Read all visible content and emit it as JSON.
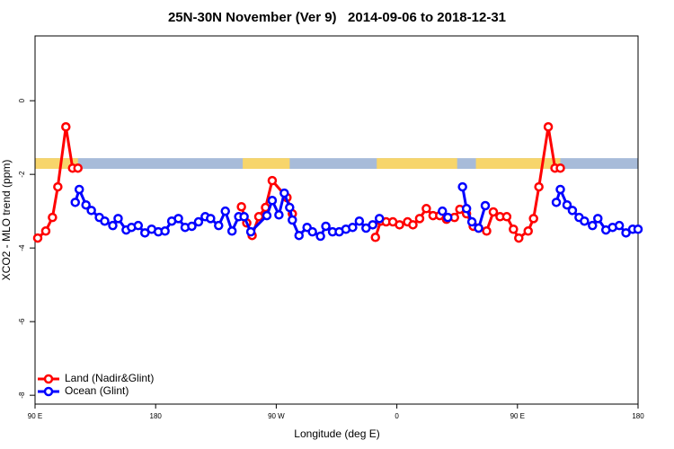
{
  "chart_data": {
    "type": "line",
    "title": "25N-30N November (Ver 9)   2014-09-06 to 2018-12-31",
    "x_label": "Longitude (deg E)",
    "y_label": "XCO2 - MLO trend (ppm)",
    "xlim": [
      90,
      540
    ],
    "xticks": [
      {
        "value": 90,
        "label": "90 E"
      },
      180,
      {
        "value": 270,
        "label": "90 W"
      },
      {
        "value": 360,
        "label": "0"
      },
      {
        "value": 450,
        "label": "90 E"
      },
      {
        "value": 540,
        "label": "180"
      }
    ],
    "ylim": [
      -8.24,
      1.76
    ],
    "yticks": [
      0,
      -2,
      -4,
      -6,
      -8
    ],
    "legend": "bottom-left",
    "land_mask": {
      "y": [
        -1.56,
        -1.85
      ],
      "land_color": "#f7d56b",
      "ocean_color": "#a7bbd9",
      "land_x": [
        [
          90,
          122
        ],
        [
          245,
          280
        ],
        [
          345,
          405
        ],
        [
          419,
          482
        ]
      ]
    },
    "series": [
      {
        "name": "Land (Nadir&Glint)",
        "color": "#ff0000",
        "x": [
          92,
          98,
          103,
          107,
          113,
          118,
          122,
          null,
          244,
          248,
          252,
          257,
          262,
          267,
          278,
          282,
          null,
          344,
          348,
          352,
          357,
          362,
          368,
          372,
          377,
          382,
          387,
          392,
          397,
          403,
          407,
          412,
          417,
          421,
          427,
          432,
          437,
          442,
          447,
          451,
          458,
          462,
          466,
          473,
          478,
          482
        ],
        "values": [
          -3.73,
          -3.54,
          -3.17,
          -2.34,
          -0.71,
          -1.83,
          -1.83,
          null,
          -2.88,
          -3.32,
          -3.66,
          -3.15,
          -2.9,
          -2.17,
          -2.63,
          -3.07,
          null,
          -3.71,
          -3.27,
          -3.29,
          -3.29,
          -3.37,
          -3.29,
          -3.37,
          -3.2,
          -2.93,
          -3.12,
          -3.12,
          -3.22,
          -3.17,
          -2.95,
          -3.07,
          -3.41,
          -3.46,
          -3.54,
          -3.02,
          -3.15,
          -3.15,
          -3.49,
          -3.73,
          -3.54,
          -3.2,
          -2.34,
          -0.71,
          -1.83,
          -1.83
        ]
      },
      {
        "name": "Ocean (Glint)",
        "color": "#0000ff",
        "x": [
          120,
          123,
          128,
          132,
          138,
          142,
          148,
          152,
          158,
          162,
          167,
          172,
          177,
          182,
          187,
          192,
          197,
          202,
          207,
          212,
          217,
          221,
          227,
          232,
          237,
          242,
          246,
          251,
          263,
          267,
          272,
          276,
          280,
          282,
          287,
          293,
          297,
          303,
          307,
          312,
          317,
          322,
          327,
          332,
          337,
          342,
          347,
          null,
          394,
          398,
          null,
          409,
          412,
          416,
          421,
          426,
          null,
          479,
          482,
          487,
          491,
          496,
          500,
          506,
          510,
          516,
          521,
          526,
          531,
          536,
          540
        ],
        "values": [
          -2.76,
          -2.41,
          -2.83,
          -2.98,
          -3.17,
          -3.27,
          -3.39,
          -3.2,
          -3.51,
          -3.44,
          -3.39,
          -3.59,
          -3.49,
          -3.56,
          -3.54,
          -3.27,
          -3.2,
          -3.44,
          -3.41,
          -3.29,
          -3.15,
          -3.2,
          -3.39,
          -3.0,
          -3.54,
          -3.15,
          -3.15,
          -3.56,
          -3.12,
          -2.71,
          -3.1,
          -2.51,
          -2.9,
          -3.24,
          -3.66,
          -3.44,
          -3.56,
          -3.68,
          -3.41,
          -3.56,
          -3.56,
          -3.49,
          -3.44,
          -3.27,
          -3.46,
          -3.37,
          -3.2,
          null,
          -3.0,
          -3.17,
          null,
          -2.34,
          -2.93,
          -3.29,
          -3.46,
          -2.85,
          null,
          -2.76,
          -2.41,
          -2.83,
          -2.98,
          -3.17,
          -3.27,
          -3.39,
          -3.2,
          -3.51,
          -3.44,
          -3.39,
          -3.59,
          -3.49,
          -3.49
        ]
      }
    ]
  }
}
